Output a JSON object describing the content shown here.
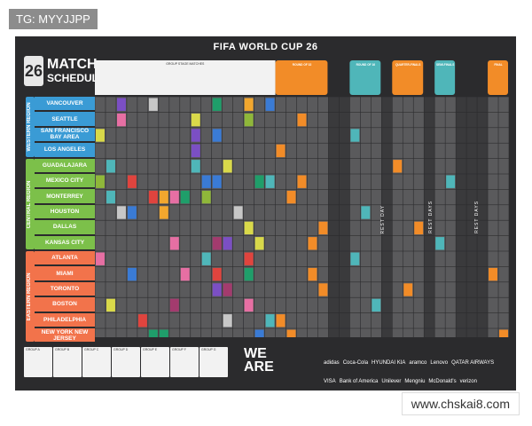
{
  "watermark_top": "TG: MYYJJPP",
  "watermark_bottom": "www.chskai8.com",
  "poster": {
    "title": "FIFA WORLD CUP 26",
    "logo_number": "26",
    "heading_line1": "MATCH",
    "heading_line2": "SCHEDULE",
    "group_stage_label": "GROUP STAGE MATCHES",
    "stage_labels": [
      "ROUND OF 32",
      "ROUND OF 16",
      "QUARTER-FINALS",
      "SEMI-FINALS",
      "FINAL"
    ],
    "rest_day_labels": [
      "REST DAY",
      "REST DAYS",
      "REST DAYS"
    ],
    "regions": [
      {
        "name": "WESTERN REGION",
        "color": "#3a9bd5"
      },
      {
        "name": "CENTRAL REGION",
        "color": "#7cc04a"
      },
      {
        "name": "EASTERN REGION",
        "color": "#f2734b"
      }
    ],
    "cities": [
      {
        "name": "VANCOUVER",
        "region": 0
      },
      {
        "name": "SEATTLE",
        "region": 0
      },
      {
        "name": "SAN FRANCISCO BAY AREA",
        "region": 0
      },
      {
        "name": "LOS ANGELES",
        "region": 0
      },
      {
        "name": "GUADALAJARA",
        "region": 1
      },
      {
        "name": "MEXICO CITY",
        "region": 1
      },
      {
        "name": "MONTERREY",
        "region": 1
      },
      {
        "name": "HOUSTON",
        "region": 1
      },
      {
        "name": "DALLAS",
        "region": 1
      },
      {
        "name": "KANSAS CITY",
        "region": 1
      },
      {
        "name": "ATLANTA",
        "region": 2
      },
      {
        "name": "MIAMI",
        "region": 2
      },
      {
        "name": "TORONTO",
        "region": 2
      },
      {
        "name": "BOSTON",
        "region": 2
      },
      {
        "name": "PHILADELPHIA",
        "region": 2
      },
      {
        "name": "NEW YORK NEW JERSEY",
        "region": 2
      }
    ],
    "we_are_26": "WE ARE 26",
    "sponsors": [
      "adidas",
      "Coca-Cola",
      "HYUNDAI KIA",
      "aramco",
      "Lenovo",
      "QATAR AIRWAYS",
      "VISA",
      "Bank of America",
      "Unilever",
      "Mengniu",
      "McDonald's",
      "verizon"
    ],
    "group_boxes": [
      "GROUP A",
      "GROUP B",
      "GROUP C",
      "GROUP D",
      "GROUP E",
      "GROUP F",
      "GROUP G"
    ],
    "colors": {
      "background": "#2b2b2d",
      "grid_cell": "#5a5a5c",
      "header_white": "#f2f2f2",
      "round32": "#f28c28",
      "round16": "#4fb6b9",
      "quarter": "#f28c28",
      "semi": "#4fb6b9",
      "final": "#f28c28"
    }
  }
}
